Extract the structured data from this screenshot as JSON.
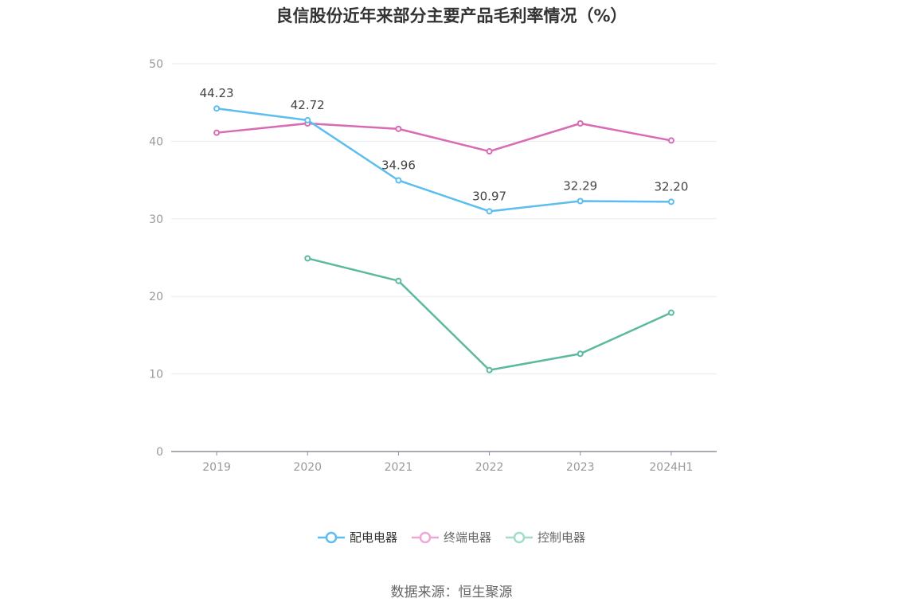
{
  "chart_data": {
    "type": "line",
    "title": "良信股份近年来部分主要产品毛利率情况（%）",
    "categories": [
      "2019",
      "2020",
      "2021",
      "2022",
      "2023",
      "2024H1"
    ],
    "ylim": [
      0,
      50
    ],
    "yticks": [
      "0",
      "10",
      "20",
      "30",
      "40",
      "50"
    ],
    "grid": true,
    "legend_position": "bottom",
    "series": [
      {
        "name": "配电电器",
        "color": "#5bbdf0",
        "values": [
          44.23,
          42.72,
          34.96,
          30.97,
          32.29,
          32.2
        ],
        "labels": [
          "44.23",
          "42.72",
          "34.96",
          "30.97",
          "32.29",
          "32.20"
        ]
      },
      {
        "name": "终端电器",
        "color": "#d86bb3",
        "values": [
          41.1,
          42.3,
          41.6,
          38.7,
          42.3,
          40.1
        ]
      },
      {
        "name": "控制电器",
        "color": "#5bb99f",
        "values": [
          null,
          24.9,
          22.0,
          10.5,
          12.6,
          17.9
        ]
      }
    ]
  },
  "source": "数据来源：恒生聚源"
}
